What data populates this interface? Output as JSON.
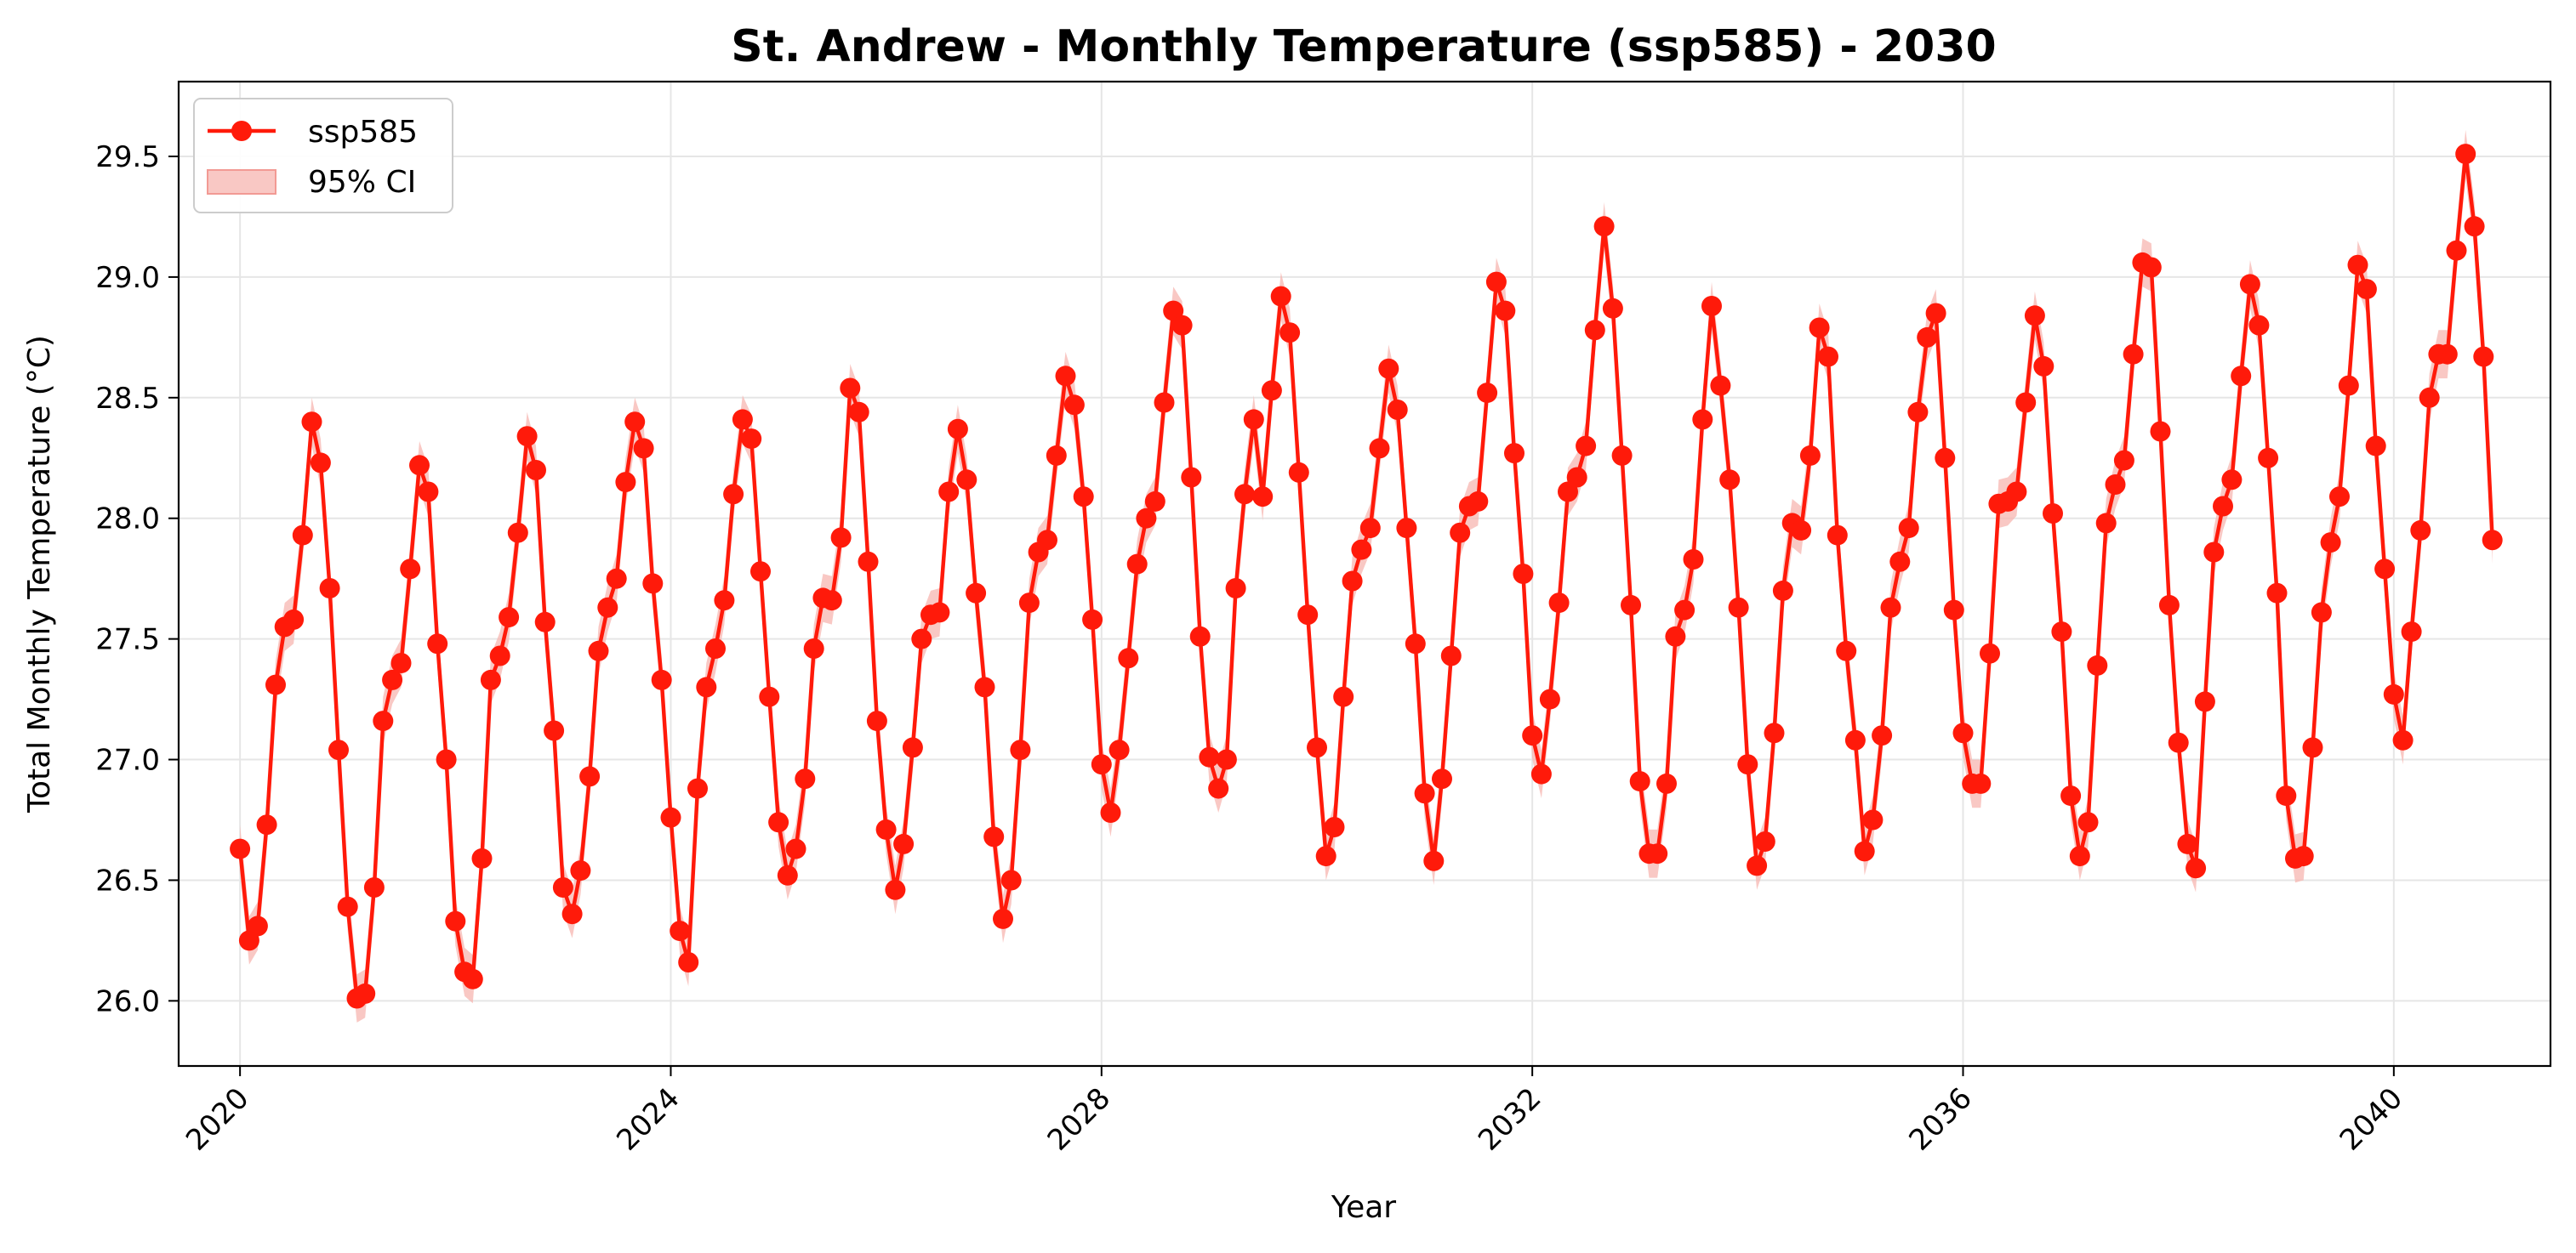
{
  "chart_data": {
    "type": "line",
    "title": "St. Andrew - Monthly Temperature (ssp585) - 2030",
    "xlabel": "Year",
    "ylabel": "Total Monthly Temperature (°C)",
    "xlim": [
      "2019-06-07",
      "2041-06-16"
    ],
    "ylim": [
      25.73,
      29.81
    ],
    "x_ticks": [
      "2020",
      "2024",
      "2028",
      "2032",
      "2036",
      "2040"
    ],
    "y_ticks": [
      "26.0",
      "26.5",
      "27.0",
      "27.5",
      "28.0",
      "28.5",
      "29.0",
      "29.5"
    ],
    "grid": true,
    "legend_position": "top-left",
    "start_month": "2020-01",
    "series": [
      {
        "name": "ssp585",
        "color": "#ff1a0a",
        "marker": "circle",
        "values": [
          26.63,
          26.25,
          26.31,
          26.73,
          27.31,
          27.55,
          27.58,
          27.93,
          28.4,
          28.23,
          27.71,
          27.04,
          26.39,
          26.01,
          26.03,
          26.47,
          27.16,
          27.33,
          27.4,
          27.79,
          28.22,
          28.11,
          27.48,
          27.0,
          26.33,
          26.12,
          26.09,
          26.59,
          27.33,
          27.43,
          27.59,
          27.94,
          28.34,
          28.2,
          27.57,
          27.12,
          26.47,
          26.36,
          26.54,
          26.93,
          27.45,
          27.63,
          27.75,
          28.15,
          28.4,
          28.29,
          27.73,
          27.33,
          26.76,
          26.29,
          26.16,
          26.88,
          27.3,
          27.46,
          27.66,
          28.1,
          28.41,
          28.33,
          27.78,
          27.26,
          26.74,
          26.52,
          26.63,
          26.92,
          27.46,
          27.67,
          27.66,
          27.92,
          28.54,
          28.44,
          27.82,
          27.16,
          26.71,
          26.46,
          26.65,
          27.05,
          27.5,
          27.6,
          27.61,
          28.11,
          28.37,
          28.16,
          27.69,
          27.3,
          26.68,
          26.34,
          26.5,
          27.04,
          27.65,
          27.86,
          27.91,
          28.26,
          28.59,
          28.47,
          28.09,
          27.58,
          26.98,
          26.78,
          27.04,
          27.42,
          27.81,
          28.0,
          28.07,
          28.48,
          28.86,
          28.8,
          28.17,
          27.51,
          27.01,
          26.88,
          27.0,
          27.71,
          28.1,
          28.41,
          28.09,
          28.53,
          28.92,
          28.77,
          28.19,
          27.6,
          27.05,
          26.6,
          26.72,
          27.26,
          27.74,
          27.87,
          27.96,
          28.29,
          28.62,
          28.45,
          27.96,
          27.48,
          26.86,
          26.58,
          26.92,
          27.43,
          27.94,
          28.05,
          28.07,
          28.52,
          28.98,
          28.86,
          28.27,
          27.77,
          27.1,
          26.94,
          27.25,
          27.65,
          28.11,
          28.17,
          28.3,
          28.78,
          29.21,
          28.87,
          28.26,
          27.64,
          26.91,
          26.61,
          26.61,
          26.9,
          27.51,
          27.62,
          27.83,
          28.41,
          28.88,
          28.55,
          28.16,
          27.63,
          26.98,
          26.56,
          26.66,
          27.11,
          27.7,
          27.98,
          27.95,
          28.26,
          28.79,
          28.67,
          27.93,
          27.45,
          27.08,
          26.62,
          26.75,
          27.1,
          27.63,
          27.82,
          27.96,
          28.44,
          28.75,
          28.85,
          28.25,
          27.62,
          27.11,
          26.9,
          26.9,
          27.44,
          28.06,
          28.07,
          28.11,
          28.48,
          28.84,
          28.63,
          28.02,
          27.53,
          26.85,
          26.6,
          26.74,
          27.39,
          27.98,
          28.14,
          28.24,
          28.68,
          29.06,
          29.04,
          28.36,
          27.64,
          27.07,
          26.65,
          26.55,
          27.24,
          27.86,
          28.05,
          28.16,
          28.59,
          28.97,
          28.8,
          28.25,
          27.69,
          26.85,
          26.59,
          26.6,
          27.05,
          27.61,
          27.9,
          28.09,
          28.55,
          29.05,
          28.95,
          28.3,
          27.79,
          27.27,
          27.08,
          27.53,
          27.95,
          28.5,
          28.68,
          28.68,
          29.11,
          29.51,
          29.21,
          28.67,
          27.91
        ]
      },
      {
        "name": "95% CI",
        "color": "#f7b5b0",
        "half_width": 0.1
      }
    ]
  }
}
